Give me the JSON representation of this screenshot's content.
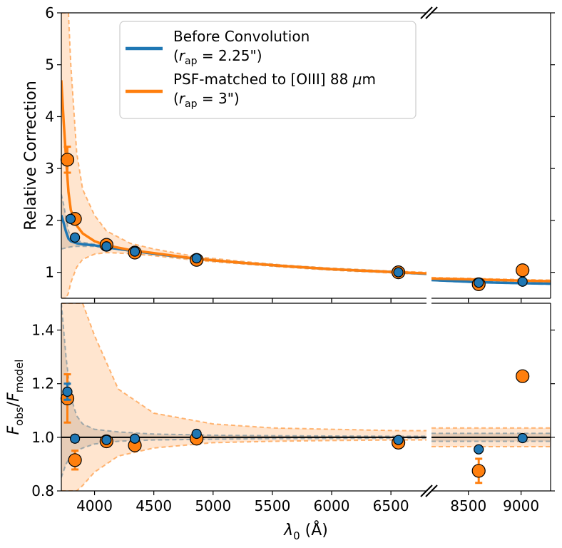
{
  "chart_data": [
    {
      "type": "line",
      "panel": "top",
      "ylabel": "Relative Correction",
      "ylim": [
        0.5,
        6
      ],
      "yticks": [
        1,
        2,
        3,
        4,
        5,
        6
      ],
      "x_segments": [
        {
          "xlim": [
            3720,
            6800
          ],
          "xticks": [
            4000,
            4500,
            5000,
            5500,
            6000,
            6500
          ]
        },
        {
          "xlim": [
            8150,
            9280
          ],
          "xticks": [
            8500,
            9000
          ]
        }
      ],
      "legend": {
        "placement": "top-center",
        "entries": [
          {
            "line1": "Before Convolution",
            "line2": "(r_ap = 2.25\")",
            "color": "#1f77b4"
          },
          {
            "line1": "PSF-matched to [OIII] 88 μm",
            "line2": "(r_ap = 3\")",
            "color": "#ff7f0e"
          }
        ]
      },
      "series": [
        {
          "name": "Before Convolution",
          "color": "#1f77b4",
          "curve_x": [
            3720,
            3740,
            3760,
            3780,
            3800,
            3850,
            3900,
            4000,
            4100,
            4300,
            4500,
            4861,
            5200,
            5600,
            6000,
            6563,
            6800,
            8150,
            8600,
            9000,
            9280
          ],
          "curve_y": [
            2.1,
            1.95,
            1.78,
            1.65,
            1.6,
            1.56,
            1.54,
            1.52,
            1.48,
            1.42,
            1.36,
            1.26,
            1.19,
            1.12,
            1.06,
            1.0,
            0.97,
            0.85,
            0.81,
            0.79,
            0.78
          ],
          "band_lower": [
            1.45,
            1.46,
            1.47,
            1.48,
            1.49,
            1.5,
            1.5,
            1.5,
            1.47,
            1.41,
            1.35,
            1.25,
            1.18,
            1.11,
            1.05,
            0.99,
            0.96,
            0.84,
            0.8,
            0.78,
            0.77
          ],
          "band_upper": [
            2.5,
            2.3,
            2.05,
            1.8,
            1.7,
            1.62,
            1.58,
            1.54,
            1.5,
            1.43,
            1.37,
            1.27,
            1.2,
            1.13,
            1.07,
            1.01,
            0.98,
            0.86,
            0.82,
            0.8,
            0.79
          ],
          "points": [
            {
              "x": 3798,
              "y": 2.03
            },
            {
              "x": 3835,
              "y": 1.67
            },
            {
              "x": 4101,
              "y": 1.5
            },
            {
              "x": 4340,
              "y": 1.4
            },
            {
              "x": 4861,
              "y": 1.27
            },
            {
              "x": 6563,
              "y": 1.0
            },
            {
              "x": 8598,
              "y": 0.8
            },
            {
              "x": 9014,
              "y": 0.82
            }
          ]
        },
        {
          "name": "PSF-matched to [OIII] 88 μm",
          "color": "#ff7f0e",
          "curve_x": [
            3720,
            3740,
            3760,
            3780,
            3800,
            3850,
            3900,
            4000,
            4100,
            4300,
            4500,
            4861,
            5200,
            5600,
            6000,
            6563,
            6800,
            8150,
            8600,
            9000,
            9280
          ],
          "curve_y": [
            4.7,
            3.9,
            3.2,
            2.55,
            2.2,
            1.9,
            1.75,
            1.6,
            1.52,
            1.43,
            1.37,
            1.26,
            1.19,
            1.12,
            1.06,
            1.0,
            0.98,
            0.88,
            0.86,
            0.84,
            0.83
          ],
          "band_lower": [
            0.5,
            0.5,
            0.5,
            0.6,
            0.8,
            1.1,
            1.25,
            1.35,
            1.38,
            1.36,
            1.32,
            1.23,
            1.17,
            1.1,
            1.04,
            0.98,
            0.96,
            0.86,
            0.84,
            0.82,
            0.81
          ],
          "band_upper": [
            6.0,
            6.0,
            6.0,
            6.0,
            5.0,
            3.3,
            2.6,
            2.1,
            1.8,
            1.56,
            1.45,
            1.3,
            1.22,
            1.14,
            1.08,
            1.02,
            1.0,
            0.9,
            0.88,
            0.86,
            0.85
          ],
          "points": [
            {
              "x": 3771,
              "y": 3.17,
              "err": 0.25
            },
            {
              "x": 3835,
              "y": 2.03
            },
            {
              "x": 4101,
              "y": 1.53
            },
            {
              "x": 4340,
              "y": 1.38
            },
            {
              "x": 4861,
              "y": 1.24
            },
            {
              "x": 6563,
              "y": 1.0
            },
            {
              "x": 8598,
              "y": 0.77
            },
            {
              "x": 9014,
              "y": 1.04
            }
          ]
        }
      ]
    },
    {
      "type": "scatter",
      "panel": "bottom",
      "xlabel": "λ₀ (Å)",
      "ylabel": "F_obs/F_model",
      "ylim": [
        0.8,
        1.5
      ],
      "yticks": [
        0.8,
        1.0,
        1.2,
        1.4
      ],
      "x_segments": [
        {
          "xlim": [
            3720,
            6800
          ],
          "xticks": [
            4000,
            4500,
            5000,
            5500,
            6000,
            6500
          ]
        },
        {
          "xlim": [
            8150,
            9280
          ],
          "xticks": [
            8500,
            9000
          ]
        }
      ],
      "reference_line": 1.0,
      "series": [
        {
          "name": "Before Convolution",
          "color": "#1f77b4",
          "band_x": [
            3720,
            3760,
            3800,
            3850,
            3900,
            4000,
            4200,
            4500,
            5000,
            5500,
            6000,
            6563,
            6800,
            8150,
            9280
          ],
          "band_lower": [
            0.85,
            0.9,
            0.93,
            0.95,
            0.96,
            0.975,
            0.985,
            0.99,
            0.993,
            0.995,
            0.996,
            0.997,
            0.997,
            0.985,
            0.985
          ],
          "band_upper": [
            1.5,
            1.3,
            1.15,
            1.08,
            1.05,
            1.03,
            1.02,
            1.012,
            1.008,
            1.006,
            1.005,
            1.004,
            1.004,
            1.015,
            1.015
          ],
          "points": [
            {
              "x": 3771,
              "y": 1.17,
              "err": 0.03
            },
            {
              "x": 3835,
              "y": 0.995,
              "err": 0.012
            },
            {
              "x": 4101,
              "y": 0.99
            },
            {
              "x": 4340,
              "y": 0.995
            },
            {
              "x": 4861,
              "y": 1.013
            },
            {
              "x": 6563,
              "y": 0.99
            },
            {
              "x": 8598,
              "y": 0.955
            },
            {
              "x": 9014,
              "y": 0.997
            }
          ]
        },
        {
          "name": "PSF-matched to [OIII] 88 μm",
          "color": "#ff7f0e",
          "band_x": [
            3720,
            3760,
            3800,
            3850,
            3900,
            4000,
            4200,
            4500,
            5000,
            5500,
            6000,
            6563,
            6800,
            8150,
            9280
          ],
          "band_lower": [
            0.8,
            0.8,
            0.8,
            0.8,
            0.82,
            0.87,
            0.93,
            0.96,
            0.98,
            0.985,
            0.988,
            0.99,
            0.99,
            0.965,
            0.965
          ],
          "band_upper": [
            1.5,
            1.5,
            1.5,
            1.5,
            1.5,
            1.38,
            1.18,
            1.09,
            1.05,
            1.035,
            1.03,
            1.025,
            1.025,
            1.035,
            1.035
          ],
          "points": [
            {
              "x": 3771,
              "y": 1.145,
              "err": 0.09
            },
            {
              "x": 3835,
              "y": 0.915,
              "err": 0.035
            },
            {
              "x": 4101,
              "y": 0.985
            },
            {
              "x": 4340,
              "y": 0.97
            },
            {
              "x": 4861,
              "y": 0.995
            },
            {
              "x": 6563,
              "y": 0.98
            },
            {
              "x": 8598,
              "y": 0.875,
              "err": 0.045
            },
            {
              "x": 9014,
              "y": 1.228
            }
          ]
        }
      ]
    }
  ]
}
